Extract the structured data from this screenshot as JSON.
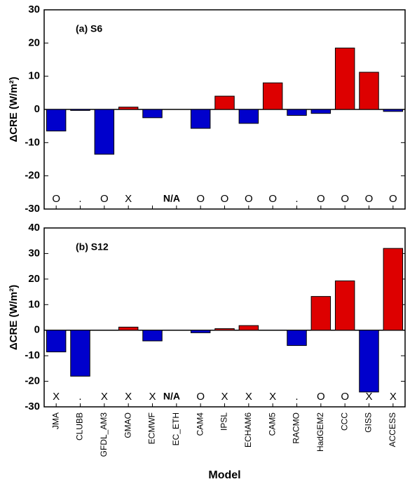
{
  "chart_data": [
    {
      "type": "bar",
      "panel_label": "(a) S6",
      "y_label": "ΔCRE (W/m²)",
      "values": [
        -6.5,
        -0.3,
        -13.5,
        0.7,
        -2.5,
        null,
        -5.7,
        4,
        -4.2,
        8,
        -1.8,
        -1.2,
        18.5,
        11.2,
        -0.6
      ],
      "markers": [
        "O",
        ".",
        "O",
        "X",
        null,
        "N/A",
        "O",
        "O",
        "O",
        "O",
        ".",
        "O",
        "O",
        "O",
        "O"
      ],
      "positive_color": "#dd0000",
      "negative_color": "#0000cc",
      "ylim": [
        -30,
        30
      ],
      "yticks": [
        -30,
        -20,
        -10,
        0,
        10,
        20,
        30
      ]
    },
    {
      "type": "bar",
      "panel_label": "(b) S12",
      "y_label": "ΔCRE (W/m²)",
      "x_label": "Model",
      "categories": [
        "JMA",
        "CLUBB",
        "GFDL_AM3",
        "GMAO",
        "ECMWF",
        "EC_ETH",
        "CAM4",
        "IPSL",
        "ECHAM6",
        "CAM5",
        "RACMO",
        "HadGEM2",
        "CCC",
        "GISS",
        "ACCESS"
      ],
      "values": [
        -8.5,
        -18,
        null,
        1.2,
        -4.2,
        null,
        -1,
        0.6,
        1.8,
        null,
        -6,
        13.2,
        19.3,
        -24.2,
        32
      ],
      "markers": [
        "X",
        ".",
        "X",
        "X",
        "X",
        "N/A",
        "O",
        "X",
        "X",
        "X",
        ".",
        "O",
        "O",
        "X",
        "X"
      ],
      "positive_color": "#dd0000",
      "negative_color": "#0000cc",
      "ylim": [
        -30,
        40
      ],
      "yticks": [
        -30,
        -20,
        -10,
        0,
        10,
        20,
        30,
        40
      ]
    }
  ]
}
